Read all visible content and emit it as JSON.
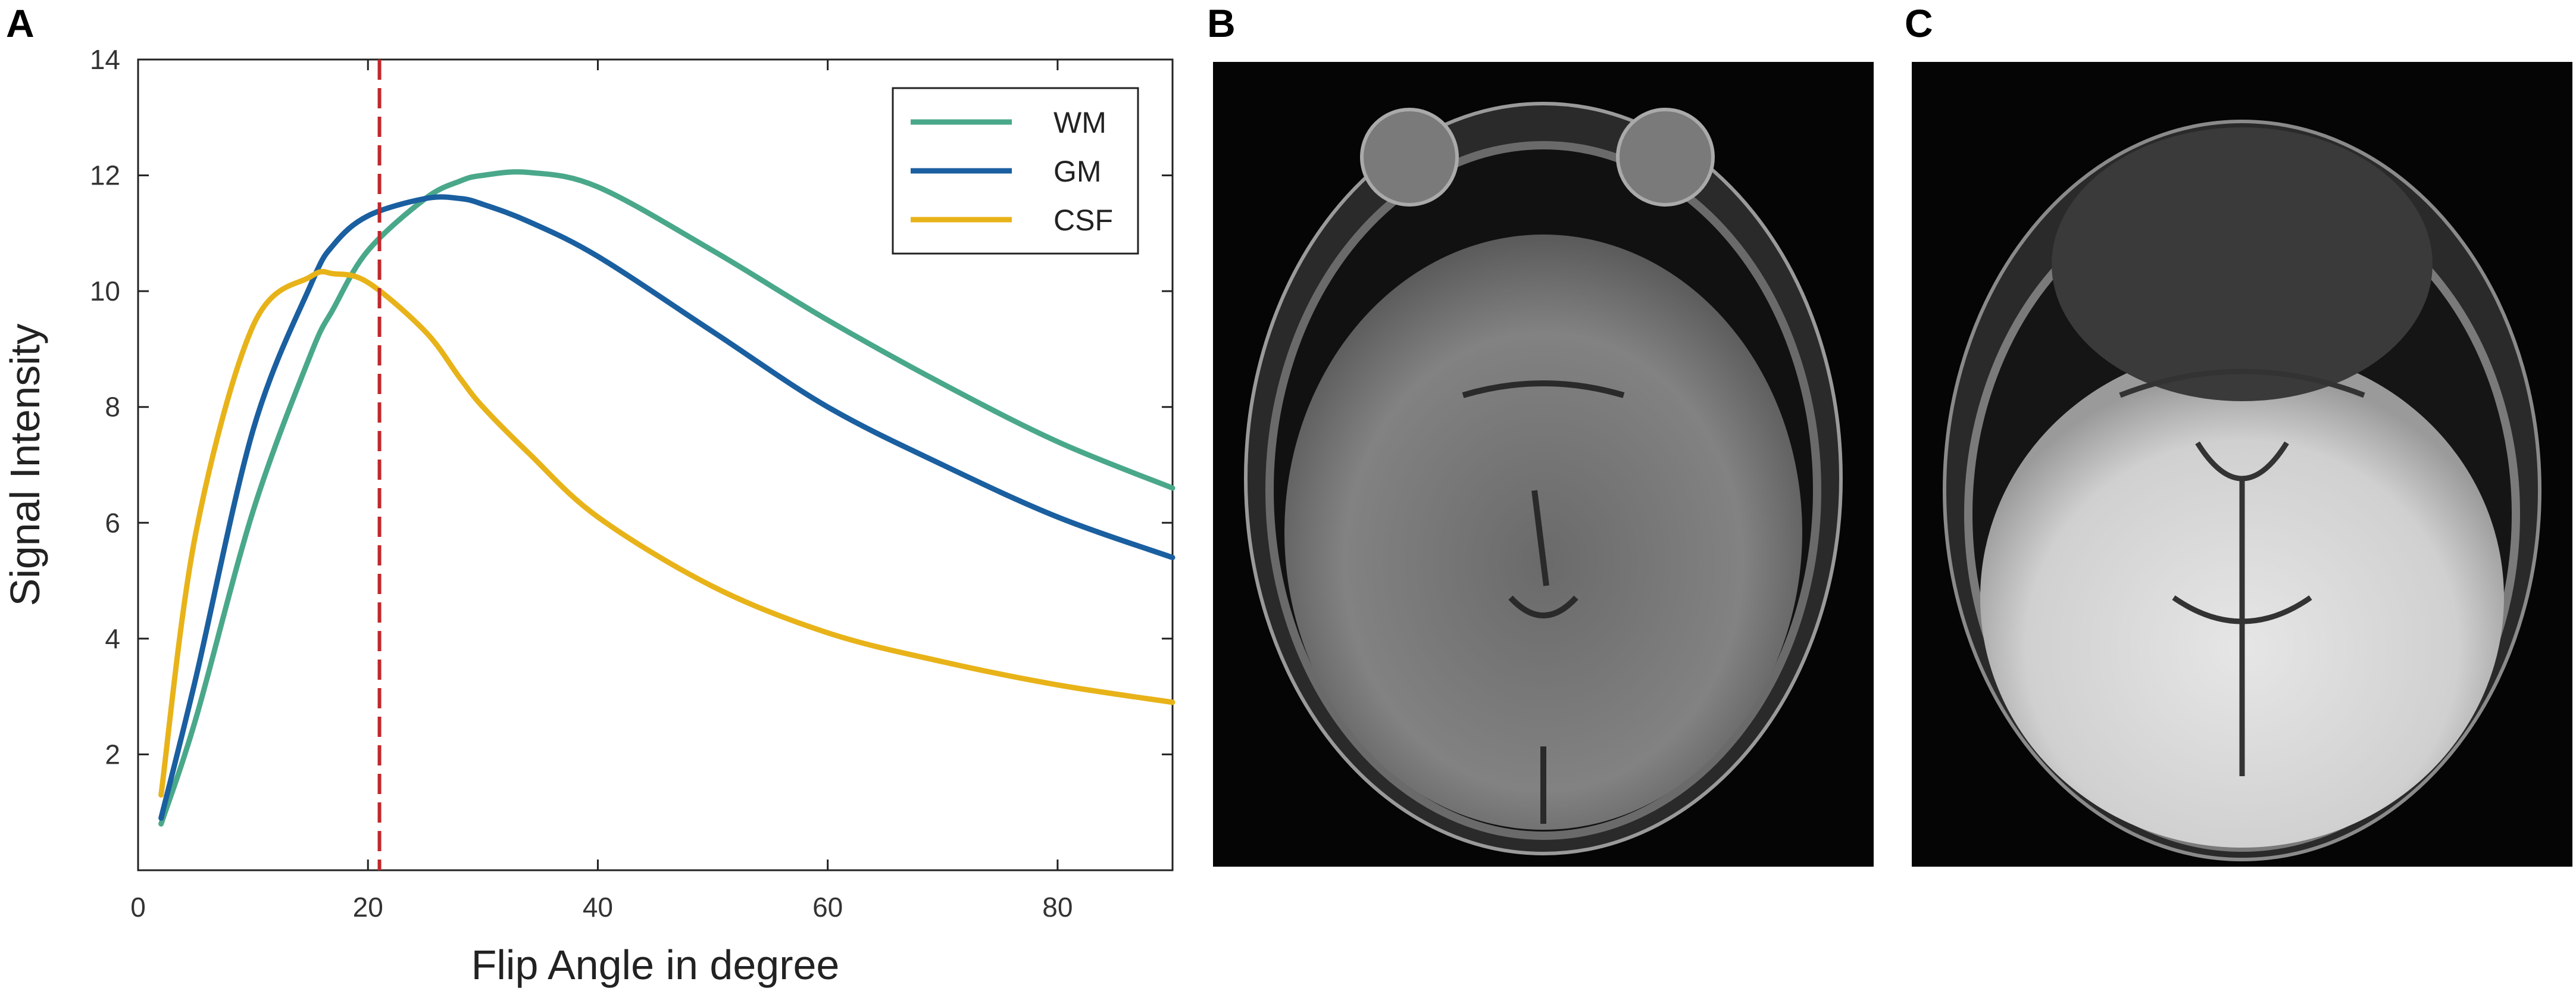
{
  "panels": {
    "a": "A",
    "b": "B",
    "c": "C"
  },
  "chart_data": {
    "type": "line",
    "title": "",
    "xlabel": "Flip Angle in degree",
    "ylabel": "Signal Intensity",
    "xlim": [
      0,
      90
    ],
    "ylim": [
      0,
      14
    ],
    "xticks": [
      0,
      20,
      40,
      60,
      80
    ],
    "yticks": [
      2,
      4,
      6,
      8,
      10,
      12,
      14
    ],
    "grid": false,
    "legend_position": "top-right",
    "reference_line": {
      "x": 21,
      "style": "dashed",
      "color": "#c0282b"
    },
    "x": [
      2,
      5,
      10,
      15,
      17,
      20,
      25,
      28,
      30,
      34,
      40,
      50,
      60,
      70,
      80,
      90
    ],
    "series": [
      {
        "name": "WM",
        "color": "#4aa88a",
        "values": [
          0.8,
          2.6,
          6.2,
          8.9,
          9.7,
          10.7,
          11.6,
          11.9,
          12.0,
          12.05,
          11.8,
          10.7,
          9.5,
          8.4,
          7.4,
          6.6
        ]
      },
      {
        "name": "GM",
        "color": "#1a5fa0",
        "values": [
          0.9,
          3.3,
          7.6,
          10.1,
          10.8,
          11.3,
          11.6,
          11.6,
          11.5,
          11.2,
          10.6,
          9.3,
          8.0,
          7.0,
          6.1,
          5.4
        ]
      },
      {
        "name": "CSF",
        "color": "#e8b319",
        "values": [
          1.3,
          5.8,
          9.4,
          10.25,
          10.3,
          10.15,
          9.3,
          8.5,
          8.0,
          7.2,
          6.1,
          4.9,
          4.1,
          3.6,
          3.2,
          2.9
        ]
      }
    ]
  }
}
